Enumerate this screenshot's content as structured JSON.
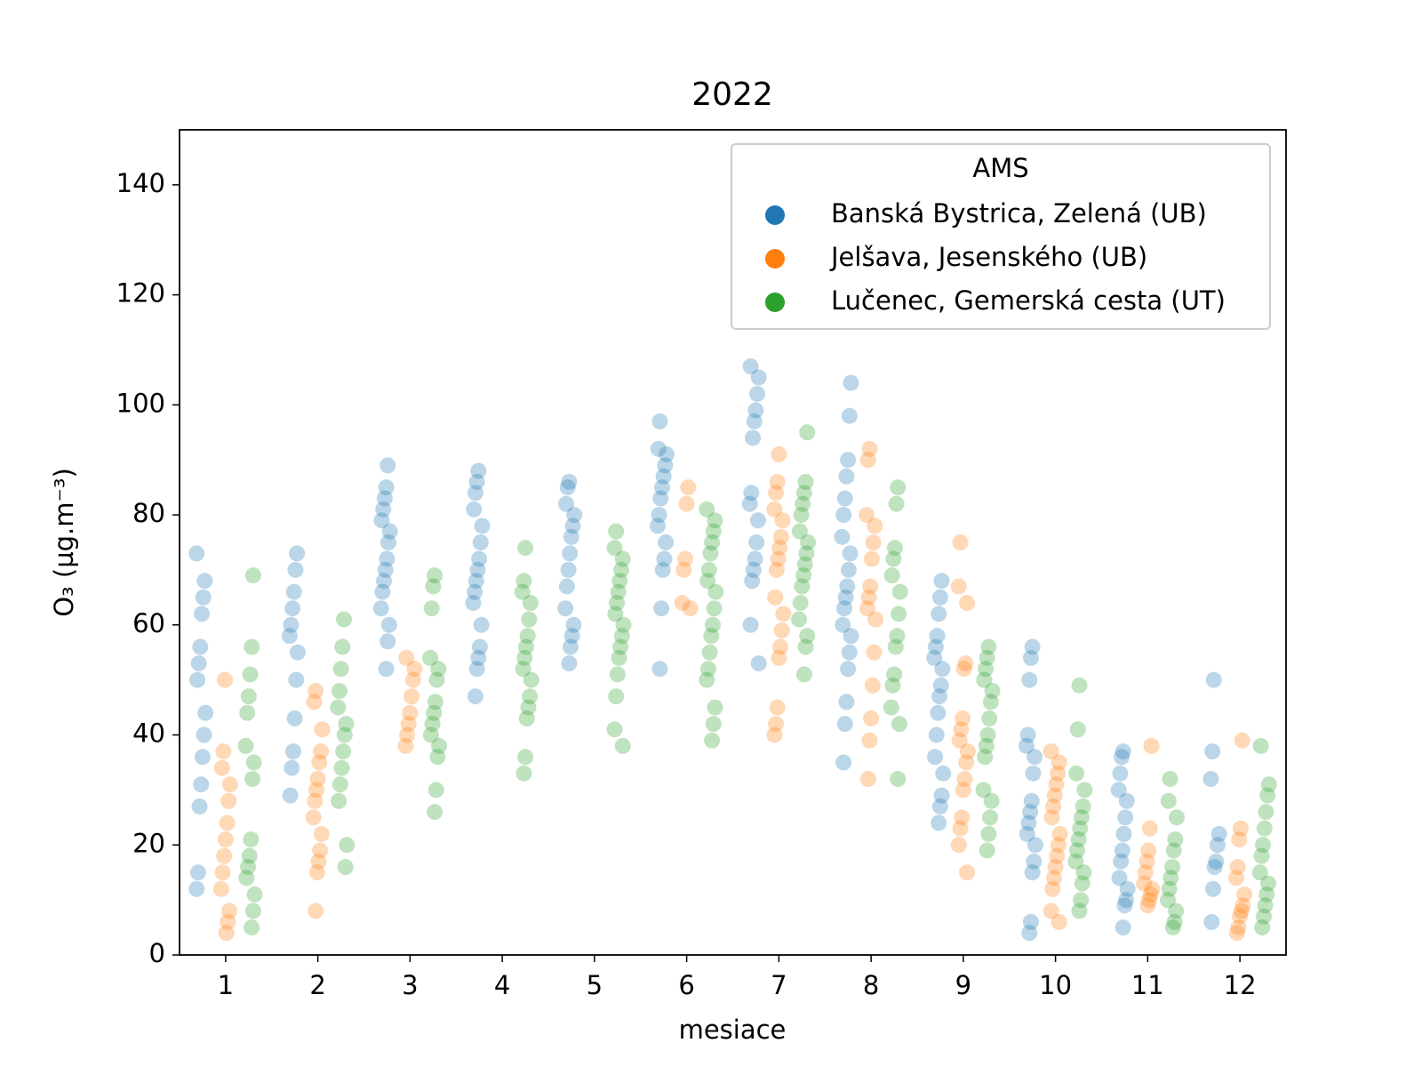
{
  "chart_data": {
    "type": "strip",
    "title": "2022",
    "x_label": "mesiace",
    "y_label": "O₃  (µg.m⁻³)",
    "categories": [
      1,
      2,
      3,
      4,
      5,
      6,
      7,
      8,
      9,
      10,
      11,
      12
    ],
    "ylim": [
      0,
      150
    ],
    "yticks": [
      0,
      20,
      40,
      60,
      80,
      100,
      120,
      140
    ],
    "legend_title": "AMS",
    "legend_position": "upper right",
    "opacity": 0.3,
    "series": [
      {
        "name": "Banská Bystrica, Zelená (UB)",
        "color": "#1f77b4",
        "values": [
          [
            73,
            68,
            65,
            62,
            56,
            53,
            50,
            44,
            40,
            36,
            31,
            27,
            15,
            12
          ],
          [
            73,
            70,
            66,
            63,
            60,
            58,
            55,
            50,
            43,
            37,
            34,
            29
          ],
          [
            89,
            85,
            83,
            81,
            79,
            77,
            75,
            72,
            70,
            68,
            66,
            63,
            60,
            57,
            52
          ],
          [
            88,
            86,
            84,
            81,
            78,
            75,
            72,
            70,
            68,
            66,
            64,
            60,
            56,
            54,
            52,
            47
          ],
          [
            86,
            85,
            82,
            80,
            78,
            76,
            73,
            70,
            67,
            63,
            60,
            58,
            56,
            53
          ],
          [
            97,
            92,
            91,
            89,
            87,
            85,
            83,
            80,
            78,
            75,
            72,
            70,
            63,
            52
          ],
          [
            107,
            105,
            102,
            99,
            97,
            94,
            84,
            82,
            79,
            75,
            72,
            70,
            68,
            60,
            53
          ],
          [
            104,
            98,
            90,
            87,
            83,
            80,
            76,
            73,
            70,
            67,
            65,
            63,
            60,
            58,
            55,
            52,
            46,
            42,
            35
          ],
          [
            68,
            65,
            62,
            58,
            56,
            54,
            52,
            49,
            47,
            44,
            40,
            36,
            33,
            29,
            27,
            24
          ],
          [
            56,
            54,
            50,
            40,
            38,
            36,
            33,
            28,
            26,
            24,
            22,
            20,
            17,
            15,
            6,
            4
          ],
          [
            37,
            36,
            33,
            30,
            28,
            25,
            22,
            19,
            17,
            14,
            12,
            10,
            9,
            5
          ],
          [
            50,
            37,
            32,
            22,
            20,
            17,
            16,
            12,
            6
          ]
        ]
      },
      {
        "name": "Jelšava, Jesenského (UB)",
        "color": "#ff7f0e",
        "values": [
          [
            50,
            37,
            34,
            31,
            28,
            24,
            21,
            18,
            15,
            12,
            8,
            6,
            4
          ],
          [
            48,
            46,
            41,
            37,
            35,
            32,
            30,
            28,
            25,
            22,
            19,
            17,
            15,
            8
          ],
          [
            54,
            52,
            50,
            47,
            44,
            42,
            40,
            38
          ],
          [],
          [],
          [
            85,
            82,
            72,
            70,
            64,
            63
          ],
          [
            91,
            86,
            84,
            81,
            79,
            76,
            74,
            72,
            70,
            65,
            62,
            59,
            56,
            54,
            45,
            42,
            40
          ],
          [
            92,
            90,
            80,
            78,
            75,
            72,
            67,
            65,
            63,
            61,
            55,
            49,
            43,
            39,
            32
          ],
          [
            75,
            67,
            64,
            53,
            52,
            43,
            41,
            39,
            37,
            35,
            32,
            30,
            25,
            23,
            20,
            15
          ],
          [
            37,
            35,
            33,
            31,
            29,
            27,
            25,
            22,
            20,
            18,
            16,
            14,
            12,
            8,
            6
          ],
          [
            38,
            23,
            19,
            17,
            15,
            13,
            12,
            11,
            10,
            9
          ],
          [
            39,
            23,
            21,
            16,
            14,
            11,
            9,
            8,
            7,
            5,
            4
          ]
        ]
      },
      {
        "name": "Lučenec, Gemerská cesta (UT)",
        "color": "#2ca02c",
        "values": [
          [
            69,
            56,
            51,
            47,
            44,
            38,
            35,
            32,
            21,
            18,
            16,
            14,
            11,
            8,
            5
          ],
          [
            61,
            56,
            52,
            48,
            45,
            42,
            40,
            37,
            34,
            31,
            28,
            20,
            16
          ],
          [
            69,
            67,
            63,
            54,
            52,
            50,
            46,
            44,
            42,
            40,
            38,
            36,
            30,
            26
          ],
          [
            74,
            68,
            66,
            64,
            61,
            58,
            56,
            54,
            52,
            50,
            47,
            45,
            43,
            36,
            33
          ],
          [
            77,
            74,
            72,
            70,
            68,
            66,
            64,
            62,
            60,
            58,
            56,
            54,
            51,
            47,
            41,
            38
          ],
          [
            81,
            79,
            77,
            75,
            73,
            70,
            68,
            66,
            63,
            60,
            58,
            55,
            52,
            50,
            45,
            42,
            39
          ],
          [
            95,
            86,
            84,
            82,
            80,
            77,
            75,
            73,
            71,
            69,
            67,
            64,
            61,
            58,
            56,
            51
          ],
          [
            85,
            82,
            74,
            72,
            69,
            66,
            62,
            58,
            56,
            51,
            49,
            45,
            42,
            32
          ],
          [
            56,
            54,
            52,
            50,
            48,
            46,
            43,
            40,
            38,
            36,
            30,
            28,
            25,
            22,
            19
          ],
          [
            49,
            41,
            33,
            30,
            27,
            25,
            23,
            21,
            19,
            17,
            15,
            13,
            10,
            8
          ],
          [
            32,
            28,
            25,
            21,
            19,
            16,
            14,
            12,
            10,
            8,
            6,
            5
          ],
          [
            38,
            31,
            29,
            26,
            23,
            20,
            18,
            15,
            13,
            11,
            9,
            7,
            5
          ]
        ]
      }
    ]
  }
}
